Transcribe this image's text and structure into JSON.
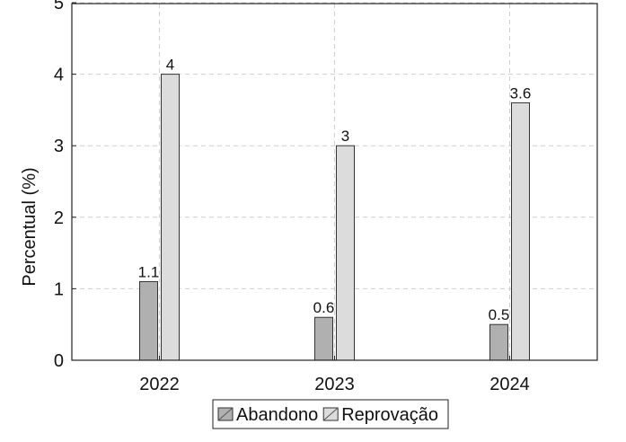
{
  "chart_data": {
    "type": "bar",
    "categories": [
      "2022",
      "2023",
      "2024"
    ],
    "ylabel": "Percentual (%)",
    "xlabel": "",
    "ylim": [
      0,
      5
    ],
    "yticks": [
      {
        "value": 0,
        "label": "0"
      },
      {
        "value": 1,
        "label": "1"
      },
      {
        "value": 2,
        "label": "2"
      },
      {
        "value": 3,
        "label": "3"
      },
      {
        "value": 4,
        "label": "4"
      },
      {
        "value": 5,
        "label": "5"
      }
    ],
    "grid": true,
    "legend_position": "bottom-center",
    "series": [
      {
        "name": "Abandono",
        "values": [
          1.1,
          0.6,
          0.5
        ],
        "labels": [
          "1.1",
          "0.6",
          "0.5"
        ],
        "color": "#b0b0b0"
      },
      {
        "name": "Reprovação",
        "values": [
          4,
          3,
          3.6
        ],
        "labels": [
          "4",
          "3",
          "3.6"
        ],
        "color": "#dcdcdc"
      }
    ]
  }
}
